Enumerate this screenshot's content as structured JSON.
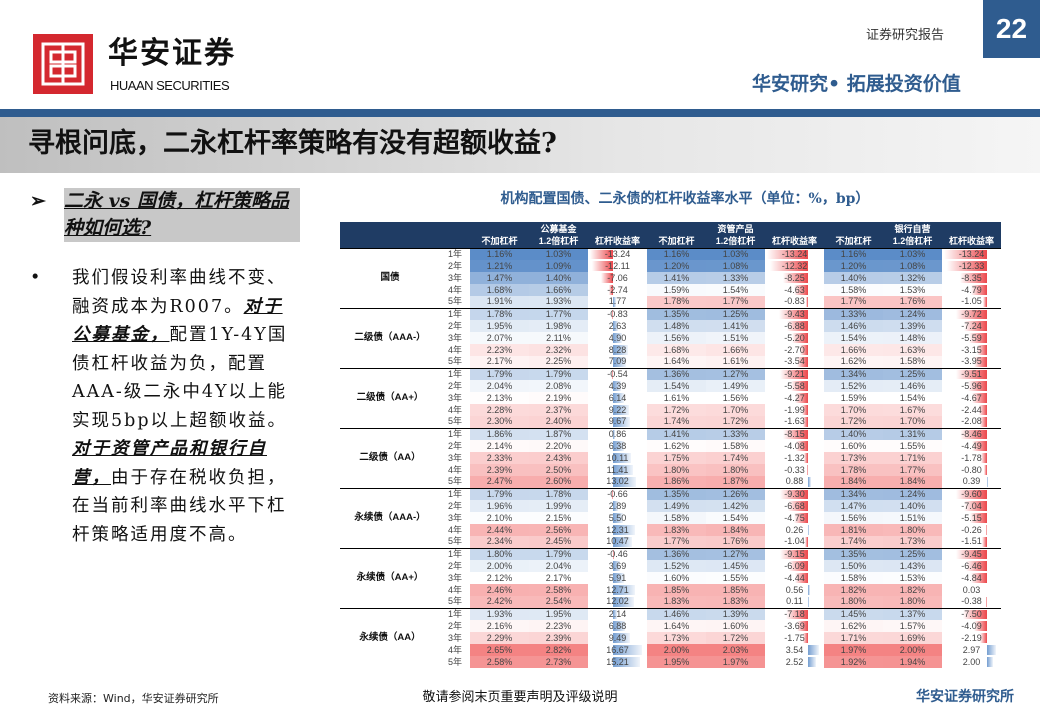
{
  "header": {
    "brand_cn": "华安证券",
    "brand_en": "HUAAN SECURITIES",
    "report_type": "证券研究报告",
    "page_number": "22",
    "slogan": "华安研究• 拓展投资价值"
  },
  "title": "寻根问底，二永杠杆率策略有没有超额收益?",
  "left": {
    "question": "二永 vs 国债，杠杆策略品种如何选?",
    "bullet_parts": [
      "我们假设利率曲线不变、融资成本为R007。",
      "对于公募基金，",
      "配置1Y-4Y国债杠杆收益为负，配置AAA-级二永中4Y以上能实现5bp以上超额收益。",
      "对于资管产品和银行自营，",
      "由于存在税收负担，在当前利率曲线水平下杠杆策略适用度不高。"
    ]
  },
  "chart_title": "机构配置国债、二永债的杠杆收益率水平（单位：%，bp）",
  "chart_data": {
    "type": "table",
    "sections": [
      "公募基金",
      "资管产品",
      "银行自营"
    ],
    "columns": [
      "不加杠杆",
      "1.2倍杠杆",
      "杠杆收益率"
    ],
    "colors": {
      "low": "#5b8cc8",
      "mid": "#ffffff",
      "high": "#f05a5a",
      "neg_bar": "#e8262b",
      "pos_bar": "#5b8cc8",
      "header": "#1f3c64"
    },
    "groups": [
      {
        "name": "国债",
        "rows": [
          [
            "1年",
            "1.16%",
            "1.03%",
            "-13.24",
            "1.16%",
            "1.03%",
            "-13.24",
            "1.16%",
            "1.03%",
            "-13.24"
          ],
          [
            "2年",
            "1.21%",
            "1.09%",
            "-12.11",
            "1.20%",
            "1.08%",
            "-12.32",
            "1.20%",
            "1.08%",
            "-12.33"
          ],
          [
            "3年",
            "1.47%",
            "1.40%",
            "-7.06",
            "1.41%",
            "1.33%",
            "-8.25",
            "1.40%",
            "1.32%",
            "-8.35"
          ],
          [
            "4年",
            "1.68%",
            "1.66%",
            "-2.74",
            "1.59%",
            "1.54%",
            "-4.63",
            "1.58%",
            "1.53%",
            "-4.79"
          ],
          [
            "5年",
            "1.91%",
            "1.93%",
            "1.77",
            "1.78%",
            "1.77%",
            "-0.83",
            "1.77%",
            "1.76%",
            "-1.05"
          ]
        ]
      },
      {
        "name": "二级债（AAA-）",
        "rows": [
          [
            "1年",
            "1.78%",
            "1.77%",
            "-0.83",
            "1.35%",
            "1.25%",
            "-9.43",
            "1.33%",
            "1.24%",
            "-9.72"
          ],
          [
            "2年",
            "1.95%",
            "1.98%",
            "2.63",
            "1.48%",
            "1.41%",
            "-6.88",
            "1.46%",
            "1.39%",
            "-7.24"
          ],
          [
            "3年",
            "2.07%",
            "2.11%",
            "4.90",
            "1.56%",
            "1.51%",
            "-5.20",
            "1.54%",
            "1.48%",
            "-5.59"
          ],
          [
            "4年",
            "2.23%",
            "2.32%",
            "8.28",
            "1.68%",
            "1.66%",
            "-2.70",
            "1.66%",
            "1.63%",
            "-3.15"
          ],
          [
            "5年",
            "2.17%",
            "2.25%",
            "7.09",
            "1.64%",
            "1.61%",
            "-3.54",
            "1.62%",
            "1.58%",
            "-3.95"
          ]
        ]
      },
      {
        "name": "二级债（AA+）",
        "rows": [
          [
            "1年",
            "1.79%",
            "1.79%",
            "-0.54",
            "1.36%",
            "1.27%",
            "-9.21",
            "1.34%",
            "1.25%",
            "-9.51"
          ],
          [
            "2年",
            "2.04%",
            "2.08%",
            "4.39",
            "1.54%",
            "1.49%",
            "-5.58",
            "1.52%",
            "1.46%",
            "-5.96"
          ],
          [
            "3年",
            "2.13%",
            "2.19%",
            "6.14",
            "1.61%",
            "1.56%",
            "-4.27",
            "1.59%",
            "1.54%",
            "-4.67"
          ],
          [
            "4年",
            "2.28%",
            "2.37%",
            "9.22",
            "1.72%",
            "1.70%",
            "-1.99",
            "1.70%",
            "1.67%",
            "-2.44"
          ],
          [
            "5年",
            "2.30%",
            "2.40%",
            "9.67",
            "1.74%",
            "1.72%",
            "-1.63",
            "1.72%",
            "1.70%",
            "-2.08"
          ]
        ]
      },
      {
        "name": "二级债（AA）",
        "rows": [
          [
            "1年",
            "1.86%",
            "1.87%",
            "0.86",
            "1.41%",
            "1.33%",
            "-8.15",
            "1.40%",
            "1.31%",
            "-8.46"
          ],
          [
            "2年",
            "2.14%",
            "2.20%",
            "6.38",
            "1.62%",
            "1.58%",
            "-4.08",
            "1.60%",
            "1.55%",
            "-4.49"
          ],
          [
            "3年",
            "2.33%",
            "2.43%",
            "10.11",
            "1.75%",
            "1.74%",
            "-1.32",
            "1.73%",
            "1.71%",
            "-1.78"
          ],
          [
            "4年",
            "2.39%",
            "2.50%",
            "11.41",
            "1.80%",
            "1.80%",
            "-0.33",
            "1.78%",
            "1.77%",
            "-0.80"
          ],
          [
            "5年",
            "2.47%",
            "2.60%",
            "13.02",
            "1.86%",
            "1.87%",
            "0.88",
            "1.84%",
            "1.84%",
            "0.39"
          ]
        ]
      },
      {
        "name": "永续债（AAA-）",
        "rows": [
          [
            "1年",
            "1.79%",
            "1.78%",
            "-0.66",
            "1.35%",
            "1.26%",
            "-9.30",
            "1.34%",
            "1.24%",
            "-9.60"
          ],
          [
            "2年",
            "1.96%",
            "1.99%",
            "2.89",
            "1.49%",
            "1.42%",
            "-6.68",
            "1.47%",
            "1.40%",
            "-7.04"
          ],
          [
            "3年",
            "2.10%",
            "2.15%",
            "5.50",
            "1.58%",
            "1.54%",
            "-4.75",
            "1.56%",
            "1.51%",
            "-5.15"
          ],
          [
            "4年",
            "2.44%",
            "2.56%",
            "12.31",
            "1.83%",
            "1.84%",
            "0.26",
            "1.81%",
            "1.80%",
            "-0.26"
          ],
          [
            "5年",
            "2.34%",
            "2.45%",
            "10.47",
            "1.77%",
            "1.76%",
            "-1.04",
            "1.74%",
            "1.73%",
            "-1.51"
          ]
        ]
      },
      {
        "name": "永续债（AA+）",
        "rows": [
          [
            "1年",
            "1.80%",
            "1.79%",
            "-0.46",
            "1.36%",
            "1.27%",
            "-9.15",
            "1.35%",
            "1.25%",
            "-9.45"
          ],
          [
            "2年",
            "2.00%",
            "2.04%",
            "3.69",
            "1.52%",
            "1.45%",
            "-6.09",
            "1.50%",
            "1.43%",
            "-6.46"
          ],
          [
            "3年",
            "2.12%",
            "2.17%",
            "5.91",
            "1.60%",
            "1.55%",
            "-4.44",
            "1.58%",
            "1.53%",
            "-4.84"
          ],
          [
            "4年",
            "2.46%",
            "2.58%",
            "12.71",
            "1.85%",
            "1.85%",
            "0.56",
            "1.82%",
            "1.82%",
            "0.03"
          ],
          [
            "5年",
            "2.42%",
            "2.54%",
            "12.02",
            "1.83%",
            "1.83%",
            "0.11",
            "1.80%",
            "1.80%",
            "-0.38"
          ]
        ]
      },
      {
        "name": "永续债（AA）",
        "rows": [
          [
            "1年",
            "1.93%",
            "1.95%",
            "2.14",
            "1.46%",
            "1.39%",
            "-7.18",
            "1.45%",
            "1.37%",
            "-7.50"
          ],
          [
            "2年",
            "2.16%",
            "2.23%",
            "6.88",
            "1.64%",
            "1.60%",
            "-3.69",
            "1.62%",
            "1.57%",
            "-4.09"
          ],
          [
            "3年",
            "2.29%",
            "2.39%",
            "9.49",
            "1.73%",
            "1.72%",
            "-1.75",
            "1.71%",
            "1.69%",
            "-2.19"
          ],
          [
            "4年",
            "2.65%",
            "2.82%",
            "16.67",
            "2.00%",
            "2.03%",
            "3.54",
            "1.97%",
            "2.00%",
            "2.97"
          ],
          [
            "5年",
            "2.58%",
            "2.73%",
            "15.21",
            "1.95%",
            "1.97%",
            "2.52",
            "1.92%",
            "1.94%",
            "2.00"
          ]
        ]
      }
    ]
  },
  "footer": {
    "source": "资料来源：Wind，华安证券研究所",
    "disclaimer": "敬请参阅末页重要声明及评级说明",
    "org": "华安证券研究所"
  }
}
